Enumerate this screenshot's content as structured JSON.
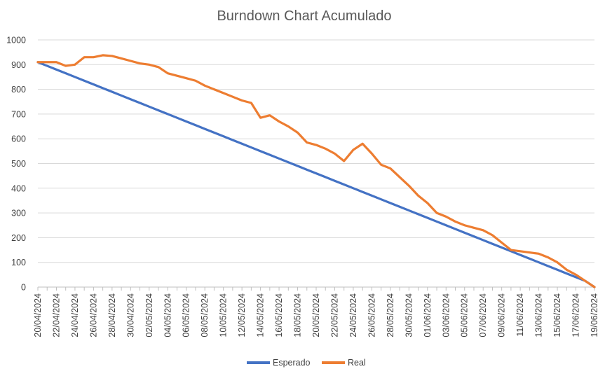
{
  "chart_data": {
    "type": "line",
    "title": "Burndown Chart Acumulado",
    "ylim": [
      0,
      1000
    ],
    "yticks": [
      "0",
      "100",
      "200",
      "300",
      "400",
      "500",
      "600",
      "700",
      "800",
      "900",
      "1000"
    ],
    "x": [
      "20/04/2024",
      "21/04/2024",
      "22/04/2024",
      "23/04/2024",
      "24/04/2024",
      "25/04/2024",
      "26/04/2024",
      "27/04/2024",
      "28/04/2024",
      "29/04/2024",
      "30/04/2024",
      "01/05/2024",
      "02/05/2024",
      "03/05/2024",
      "04/05/2024",
      "05/05/2024",
      "06/05/2024",
      "07/05/2024",
      "08/05/2024",
      "09/05/2024",
      "10/05/2024",
      "11/05/2024",
      "12/05/2024",
      "13/05/2024",
      "14/05/2024",
      "15/05/2024",
      "16/05/2024",
      "17/05/2024",
      "18/05/2024",
      "19/05/2024",
      "20/05/2024",
      "21/05/2024",
      "22/05/2024",
      "23/05/2024",
      "24/05/2024",
      "25/05/2024",
      "26/05/2024",
      "27/05/2024",
      "28/05/2024",
      "29/05/2024",
      "30/05/2024",
      "31/05/2024",
      "01/06/2024",
      "02/06/2024",
      "03/06/2024",
      "04/06/2024",
      "05/06/2024",
      "06/06/2024",
      "07/06/2024",
      "08/06/2024",
      "09/06/2024",
      "10/06/2024",
      "11/06/2024",
      "12/06/2024",
      "13/06/2024",
      "14/06/2024",
      "15/06/2024",
      "16/06/2024",
      "17/06/2024",
      "18/06/2024",
      "19/06/2024"
    ],
    "xticks_shown": [
      "20/04/2024",
      "22/04/2024",
      "24/04/2024",
      "26/04/2024",
      "28/04/2024",
      "30/04/2024",
      "02/05/2024",
      "04/05/2024",
      "06/05/2024",
      "08/05/2024",
      "10/05/2024",
      "12/05/2024",
      "14/05/2024",
      "16/05/2024",
      "18/05/2024",
      "20/05/2024",
      "22/05/2024",
      "24/05/2024",
      "26/05/2024",
      "28/05/2024",
      "30/05/2024",
      "01/06/2024",
      "03/06/2024",
      "05/06/2024",
      "07/06/2024",
      "09/06/2024",
      "11/06/2024",
      "13/06/2024",
      "15/06/2024",
      "17/06/2024",
      "19/06/2024"
    ],
    "series": [
      {
        "name": "Esperado",
        "color": "#4472C4",
        "values": [
          910,
          895,
          880,
          865,
          850,
          835,
          820,
          805,
          790,
          775,
          760,
          745,
          730,
          715,
          700,
          685,
          670,
          655,
          640,
          625,
          610,
          595,
          580,
          565,
          550,
          535,
          520,
          505,
          490,
          475,
          460,
          445,
          430,
          415,
          400,
          385,
          370,
          355,
          340,
          325,
          310,
          295,
          280,
          265,
          250,
          235,
          220,
          205,
          190,
          175,
          160,
          145,
          130,
          115,
          100,
          85,
          70,
          55,
          40,
          25,
          0
        ]
      },
      {
        "name": "Real",
        "color": "#ED7D31",
        "values": [
          910,
          910,
          910,
          895,
          900,
          930,
          930,
          938,
          935,
          925,
          915,
          905,
          900,
          890,
          865,
          855,
          845,
          835,
          815,
          800,
          785,
          770,
          755,
          745,
          685,
          695,
          670,
          650,
          625,
          585,
          575,
          560,
          540,
          510,
          555,
          580,
          540,
          495,
          480,
          445,
          410,
          370,
          340,
          300,
          285,
          265,
          250,
          240,
          230,
          210,
          180,
          150,
          145,
          140,
          135,
          120,
          100,
          70,
          50,
          25,
          0
        ]
      }
    ],
    "legend_position": "bottom",
    "grid": true
  }
}
